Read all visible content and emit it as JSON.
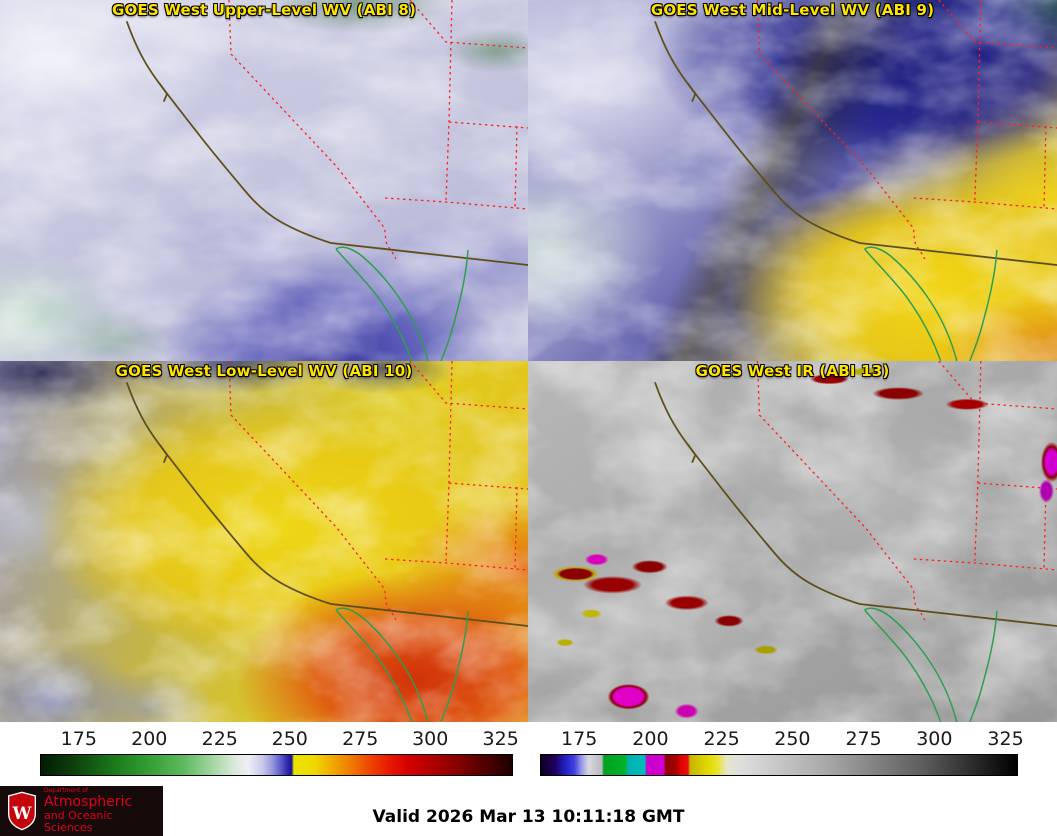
{
  "panels": [
    {
      "id": "abi8",
      "title": "GOES West Upper-Level WV (ABI 8)"
    },
    {
      "id": "abi9",
      "title": "GOES West Mid-Level WV (ABI 9)"
    },
    {
      "id": "abi10",
      "title": "GOES West Low-Level WV (ABI 10)"
    },
    {
      "id": "abi13",
      "title": "GOES West IR (ABI 13)"
    }
  ],
  "colorbars": [
    {
      "name": "water-vapor-brightness-temperature-scale",
      "ticks": [
        "175",
        "200",
        "225",
        "250",
        "275",
        "300",
        "325"
      ],
      "tick_positions_pct": [
        8.2,
        23.1,
        38.0,
        52.8,
        67.7,
        82.5,
        97.4
      ],
      "gradient_stops": [
        [
          0,
          "#041c04"
        ],
        [
          6,
          "#0c3a0c"
        ],
        [
          14,
          "#177017"
        ],
        [
          22,
          "#2f9b2f"
        ],
        [
          30,
          "#5cb85c"
        ],
        [
          36,
          "#9ed49e"
        ],
        [
          41,
          "#d9e9d9"
        ],
        [
          44,
          "#eeeef6"
        ],
        [
          47,
          "#c9c9ea"
        ],
        [
          49,
          "#9a9ade"
        ],
        [
          51,
          "#5858c8"
        ],
        [
          52.5,
          "#2a22a8"
        ],
        [
          53.2,
          "#1a1294"
        ],
        [
          53.7,
          "#e8e400"
        ],
        [
          58,
          "#f0d800"
        ],
        [
          62,
          "#f0a800"
        ],
        [
          66,
          "#f07800"
        ],
        [
          70,
          "#ee4400"
        ],
        [
          74,
          "#e81800"
        ],
        [
          78,
          "#d40000"
        ],
        [
          83,
          "#b00000"
        ],
        [
          88,
          "#8b0000"
        ],
        [
          93,
          "#5c0000"
        ],
        [
          100,
          "#1c0000"
        ]
      ]
    },
    {
      "name": "infrared-brightness-temperature-scale",
      "ticks": [
        "175",
        "200",
        "225",
        "250",
        "275",
        "300",
        "325"
      ],
      "tick_positions_pct": [
        8.2,
        23.1,
        38.0,
        52.8,
        67.7,
        82.5,
        97.4
      ],
      "gradient_stops": [
        [
          0,
          "#0d0020"
        ],
        [
          3,
          "#200060"
        ],
        [
          5,
          "#2020c0"
        ],
        [
          7,
          "#4040e0"
        ],
        [
          8.5,
          "#9898e8"
        ],
        [
          10,
          "#d8d8e0"
        ],
        [
          12.8,
          "#b8b8c0"
        ],
        [
          13.2,
          "#00a020"
        ],
        [
          17.8,
          "#00b428"
        ],
        [
          18.2,
          "#00b0b0"
        ],
        [
          21.8,
          "#00bcbc"
        ],
        [
          22.2,
          "#cc00cc"
        ],
        [
          25.8,
          "#d000d0"
        ],
        [
          26.2,
          "#8b0000"
        ],
        [
          28.8,
          "#b00000"
        ],
        [
          29.2,
          "#e00000"
        ],
        [
          30.9,
          "#e81010"
        ],
        [
          31.3,
          "#c8b400"
        ],
        [
          35,
          "#e0d800"
        ],
        [
          37,
          "#e8e428"
        ],
        [
          39,
          "#e6e6c8"
        ],
        [
          42,
          "#dedede"
        ],
        [
          60,
          "#a8a8a8"
        ],
        [
          80,
          "#5e5e5e"
        ],
        [
          100,
          "#000000"
        ]
      ]
    }
  ],
  "footer": {
    "valid_time": "Valid 2026 Mar 13 10:11:18 GMT",
    "logo": {
      "dept_prefix": "Department of",
      "dept_line1": "Atmospheric",
      "dept_line2": "and Oceanic Sciences",
      "crest_letter": "W"
    }
  },
  "colors": {
    "panel_title": "#ffe400",
    "state_border": "#ff2020",
    "coastline": "#5e4f1a",
    "mexico_coast": "#2f9e4f",
    "logo_bg": "#170a0a",
    "logo_text": "#e0001e",
    "valid_text": "#000000"
  }
}
